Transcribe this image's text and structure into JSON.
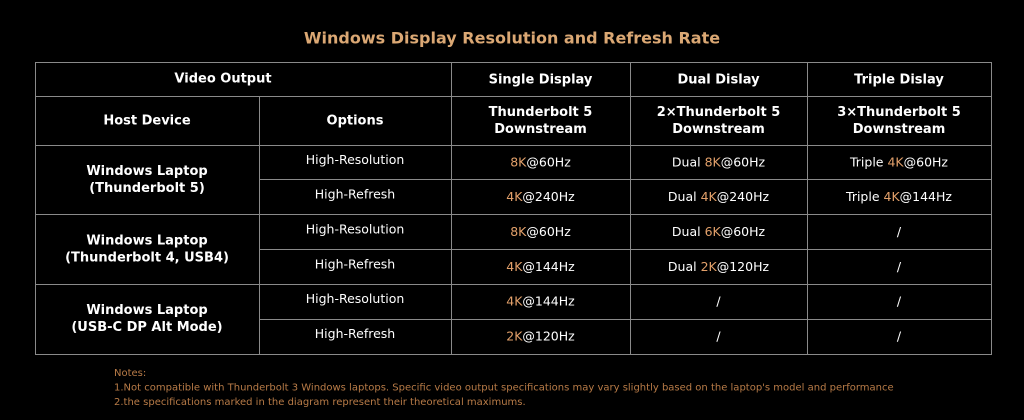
{
  "title": "Windows Display Resolution and Refresh Rate",
  "table": {
    "header_top": [
      "Video Output",
      "Single Display",
      "Dual Dislay",
      "Triple Dislay"
    ],
    "header_sub": [
      [
        "Host Device"
      ],
      [
        "Options"
      ],
      [
        "Thunderbolt 5",
        "Downstream"
      ],
      [
        "2×Thunderbolt 5",
        "Downstream"
      ],
      [
        "3×Thunderbolt 5",
        "Downstream"
      ]
    ],
    "groups": [
      {
        "host": [
          "Windows Laptop",
          "(Thunderbolt 5)"
        ],
        "rows": [
          {
            "option": "High-Resolution",
            "cells": [
              {
                "highlight": "8K",
                "suffix": "@60Hz"
              },
              {
                "prefix": "Dual ",
                "highlight": "8K",
                "suffix": "@60Hz"
              },
              {
                "prefix": "Triple ",
                "highlight": "4K",
                "suffix": "@60Hz"
              }
            ]
          },
          {
            "option": "High-Refresh",
            "cells": [
              {
                "highlight": "4K",
                "suffix": "@240Hz"
              },
              {
                "prefix": "Dual ",
                "highlight": "4K",
                "suffix": "@240Hz"
              },
              {
                "prefix": "Triple ",
                "highlight": "4K",
                "suffix": "@144Hz"
              }
            ]
          }
        ]
      },
      {
        "host": [
          "Windows Laptop",
          "(Thunderbolt 4, USB4)"
        ],
        "rows": [
          {
            "option": "High-Resolution",
            "cells": [
              {
                "highlight": "8K",
                "suffix": "@60Hz"
              },
              {
                "prefix": "Dual ",
                "highlight": "6K",
                "suffix": "@60Hz"
              },
              {
                "plain": "/"
              }
            ]
          },
          {
            "option": "High-Refresh",
            "cells": [
              {
                "highlight": "4K",
                "suffix": "@144Hz"
              },
              {
                "prefix": "Dual ",
                "highlight": "2K",
                "suffix": "@120Hz"
              },
              {
                "plain": "/"
              }
            ]
          }
        ]
      },
      {
        "host": [
          "Windows Laptop",
          "(USB-C DP Alt Mode)"
        ],
        "rows": [
          {
            "option": "High-Resolution",
            "cells": [
              {
                "highlight": "4K",
                "suffix": "@144Hz"
              },
              {
                "plain": "/"
              },
              {
                "plain": "/"
              }
            ]
          },
          {
            "option": "High-Refresh",
            "cells": [
              {
                "highlight": "2K",
                "suffix": "@120Hz"
              },
              {
                "plain": "/"
              },
              {
                "plain": "/"
              }
            ]
          }
        ]
      }
    ]
  },
  "notes": [
    "Notes:",
    "1.Not compatible with Thunderbolt 3 Windows laptops. Specific video output specifications may vary slightly based on the laptop's model and performance",
    "2.the specifications marked in the diagram represent their theoretical maximums."
  ]
}
